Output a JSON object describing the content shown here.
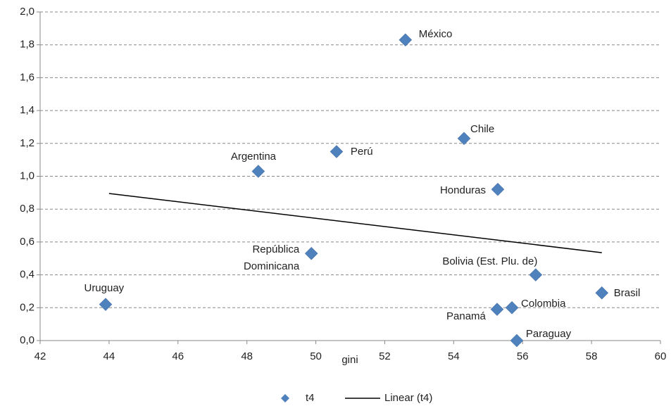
{
  "chart_data": {
    "type": "scatter",
    "x_label": "gini",
    "xlim": [
      42,
      60
    ],
    "xticks": [
      42,
      44,
      46,
      48,
      50,
      52,
      54,
      56,
      58,
      60
    ],
    "ylim": [
      0,
      2
    ],
    "yticks": [
      {
        "value": 0,
        "label": "0,0"
      },
      {
        "value": 0.2,
        "label": "0,2"
      },
      {
        "value": 0.4,
        "label": "0,4"
      },
      {
        "value": 0.6,
        "label": "0,6"
      },
      {
        "value": 0.8,
        "label": "0,8"
      },
      {
        "value": 1.0,
        "label": "1,0"
      },
      {
        "value": 1.2,
        "label": "1,2"
      },
      {
        "value": 1.4,
        "label": "1,4"
      },
      {
        "value": 1.6,
        "label": "1,6"
      },
      {
        "value": 1.8,
        "label": "1,8"
      },
      {
        "value": 2.0,
        "label": "2,0"
      }
    ],
    "grid": true,
    "legend": "bottom",
    "series": [
      {
        "name": "t4",
        "color": "#4f81bd",
        "labels": [
          "Uruguay",
          "Argentina",
          "República Dominicana",
          "Perú",
          "México",
          "Chile",
          "Honduras",
          "Bolivia  (Est. Plu. de)",
          "Brasil",
          "Panamá",
          "Colombia",
          "Paraguay"
        ],
        "x": [
          43.9,
          48.33,
          49.87,
          50.6,
          52.6,
          54.3,
          55.28,
          56.38,
          58.3,
          55.26,
          55.69,
          55.83
        ],
        "values": [
          0.22,
          1.03,
          0.53,
          1.15,
          1.83,
          1.23,
          0.92,
          0.4,
          0.29,
          0.19,
          0.2,
          0.0
        ]
      },
      {
        "name": "Linear (t4)",
        "color": "#000000",
        "type": "line",
        "x": [
          44,
          58.3
        ],
        "values": [
          0.895,
          0.535
        ]
      }
    ]
  }
}
